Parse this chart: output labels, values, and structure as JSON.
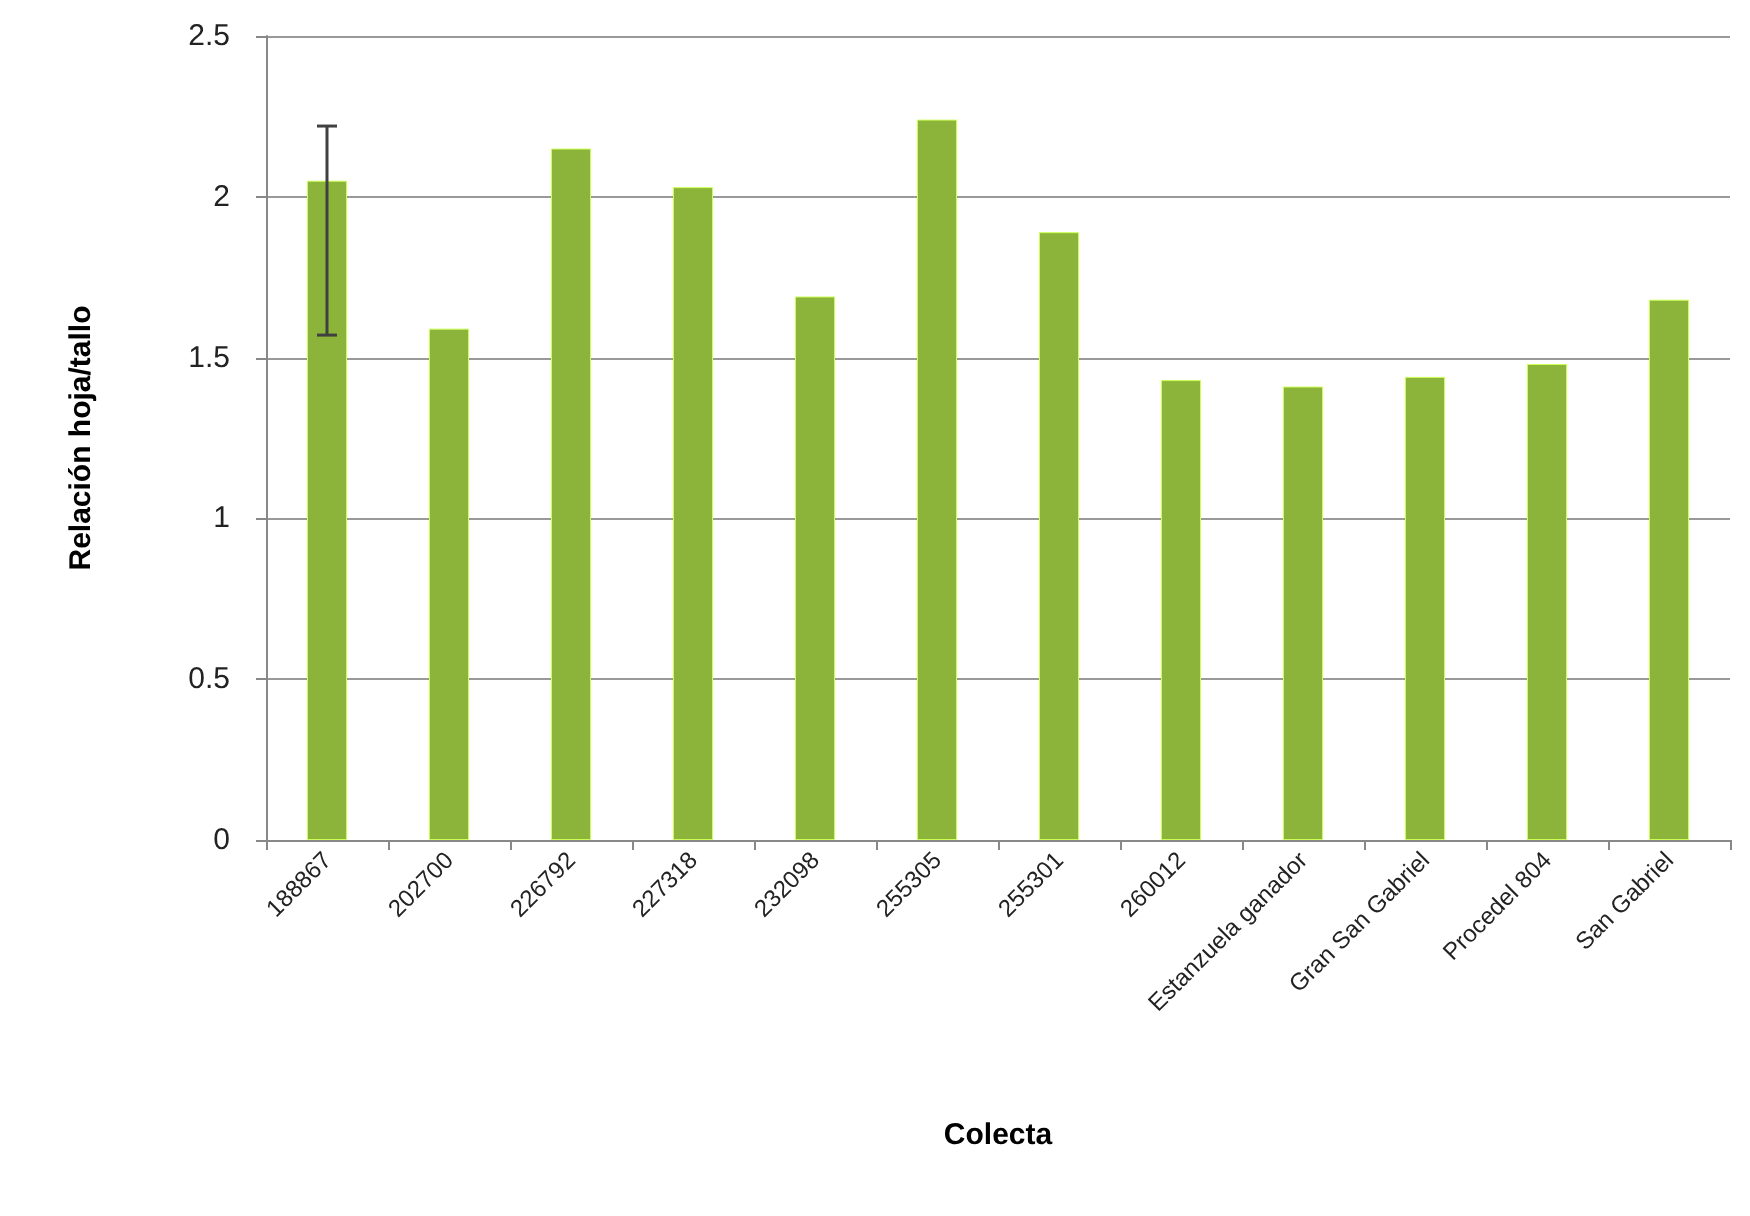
{
  "chart_data": {
    "type": "bar",
    "xlabel": "Colecta",
    "ylabel": "Relación hoja/tallo",
    "categories": [
      "188867",
      "202700",
      "226792",
      "227318",
      "232098",
      "255305",
      "255301",
      "260012",
      "Estanzuela ganador",
      "Gran San Gabriel",
      "Procedel 804",
      "San Gabriel"
    ],
    "values": [
      2.05,
      1.59,
      2.15,
      2.03,
      1.69,
      2.24,
      1.89,
      1.43,
      1.41,
      1.44,
      1.48,
      1.68
    ],
    "errors": [
      [
        1.57,
        2.22
      ],
      null,
      null,
      null,
      null,
      null,
      null,
      null,
      null,
      null,
      null,
      null
    ],
    "color": "#8cb43a",
    "ylim": [
      0,
      2.5
    ],
    "yticks": [
      0,
      0.5,
      1,
      1.5,
      2,
      2.5
    ],
    "grid": "y"
  }
}
